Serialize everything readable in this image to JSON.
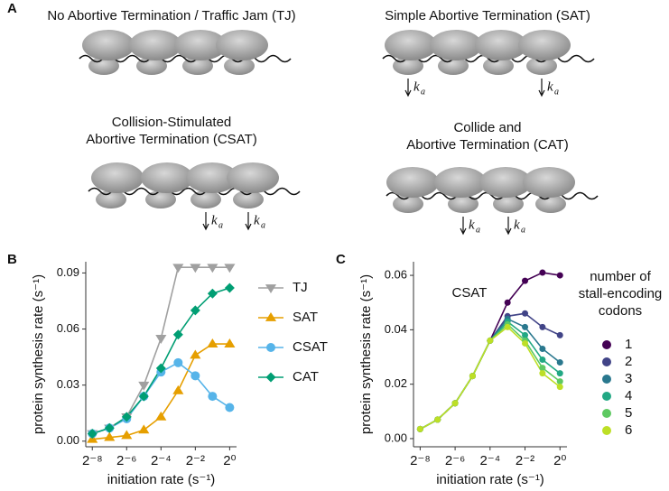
{
  "panel_labels": [
    "A",
    "B",
    "C"
  ],
  "diagrams": [
    {
      "title": [
        "No Abortive Termination / Traffic Jam (TJ)"
      ]
    },
    {
      "title": [
        "Simple Abortive Termination (SAT)"
      ]
    },
    {
      "title": [
        "Collision-Stimulated",
        "Abortive Termination (CSAT)"
      ]
    },
    {
      "title": [
        "Collide and",
        "Abortive Termination (CAT)"
      ]
    }
  ],
  "rate_symbol": "k",
  "rate_subscript": "a",
  "chart_data": [
    {
      "type": "line",
      "x_label": "initiation rate (s⁻¹)",
      "y_label": "protein synthesis rate (s⁻¹)",
      "x_log_base": 2,
      "x": [
        0.00390625,
        0.0078125,
        0.015625,
        0.03125,
        0.0625,
        0.125,
        0.25,
        0.5,
        1
      ],
      "xlim": [
        0.003,
        1.32
      ],
      "xticks": [
        {
          "value": 0.00390625,
          "label": "2⁻⁸"
        },
        {
          "value": 0.015625,
          "label": "2⁻⁶"
        },
        {
          "value": 0.0625,
          "label": "2⁻⁴"
        },
        {
          "value": 0.25,
          "label": "2⁻²"
        },
        {
          "value": 1,
          "label": "2⁰"
        }
      ],
      "ylim": [
        -0.003,
        0.096
      ],
      "yticks": [
        {
          "value": 0,
          "label": "0.00"
        },
        0.03,
        0.06,
        0.09
      ],
      "series": [
        {
          "name": "TJ",
          "color": "#a0a0a0",
          "marker": "triangle-down",
          "values": [
            0.004,
            0.007,
            0.013,
            0.03,
            0.055,
            0.093,
            0.093,
            0.093,
            0.093
          ]
        },
        {
          "name": "SAT",
          "color": "#e69f00",
          "marker": "triangle-up",
          "values": [
            0.001,
            0.002,
            0.003,
            0.006,
            0.013,
            0.027,
            0.046,
            0.052,
            0.052
          ]
        },
        {
          "name": "CSAT",
          "color": "#56b4e9",
          "marker": "circle",
          "values": [
            0.004,
            0.007,
            0.012,
            0.024,
            0.037,
            0.042,
            0.035,
            0.024,
            0.018
          ]
        },
        {
          "name": "CAT",
          "color": "#009e73",
          "marker": "diamond",
          "values": [
            0.004,
            0.007,
            0.013,
            0.024,
            0.039,
            0.057,
            0.07,
            0.079,
            0.082
          ]
        }
      ]
    },
    {
      "type": "line",
      "title": "CSAT",
      "x_label": "initiation rate (s⁻¹)",
      "y_label": "protein synthesis rate (s⁻¹)",
      "legend_title": [
        "number of",
        "stall-encoding",
        "codons"
      ],
      "x_log_base": 2,
      "x": [
        0.00390625,
        0.0078125,
        0.015625,
        0.03125,
        0.0625,
        0.125,
        0.25,
        0.5,
        1
      ],
      "xlim": [
        0.003,
        1.32
      ],
      "xticks": [
        {
          "value": 0.00390625,
          "label": "2⁻⁸"
        },
        {
          "value": 0.015625,
          "label": "2⁻⁶"
        },
        {
          "value": 0.0625,
          "label": "2⁻⁴"
        },
        {
          "value": 0.25,
          "label": "2⁻²"
        },
        {
          "value": 1,
          "label": "2⁰"
        }
      ],
      "ylim": [
        -0.003,
        0.065
      ],
      "yticks": [
        {
          "value": 0,
          "label": "0.00"
        },
        0.02,
        0.04,
        0.06
      ],
      "series": [
        {
          "name": "1",
          "color": "#440154",
          "marker": "circle",
          "values": [
            0.0035,
            0.007,
            0.013,
            0.023,
            0.036,
            0.05,
            0.058,
            0.061,
            0.06
          ]
        },
        {
          "name": "2",
          "color": "#414487",
          "marker": "circle",
          "values": [
            0.0035,
            0.007,
            0.013,
            0.023,
            0.036,
            0.045,
            0.046,
            0.041,
            0.038
          ]
        },
        {
          "name": "3",
          "color": "#2a788e",
          "marker": "circle",
          "values": [
            0.0035,
            0.007,
            0.013,
            0.023,
            0.036,
            0.044,
            0.041,
            0.033,
            0.028
          ]
        },
        {
          "name": "4",
          "color": "#22a884",
          "marker": "circle",
          "values": [
            0.0035,
            0.007,
            0.013,
            0.023,
            0.036,
            0.043,
            0.038,
            0.029,
            0.024
          ]
        },
        {
          "name": "5",
          "color": "#5ec962",
          "marker": "circle",
          "values": [
            0.0035,
            0.007,
            0.013,
            0.023,
            0.036,
            0.042,
            0.036,
            0.026,
            0.021
          ]
        },
        {
          "name": "6",
          "color": "#bddf26",
          "marker": "circle",
          "values": [
            0.0035,
            0.007,
            0.013,
            0.023,
            0.036,
            0.041,
            0.035,
            0.024,
            0.019
          ]
        }
      ]
    }
  ]
}
